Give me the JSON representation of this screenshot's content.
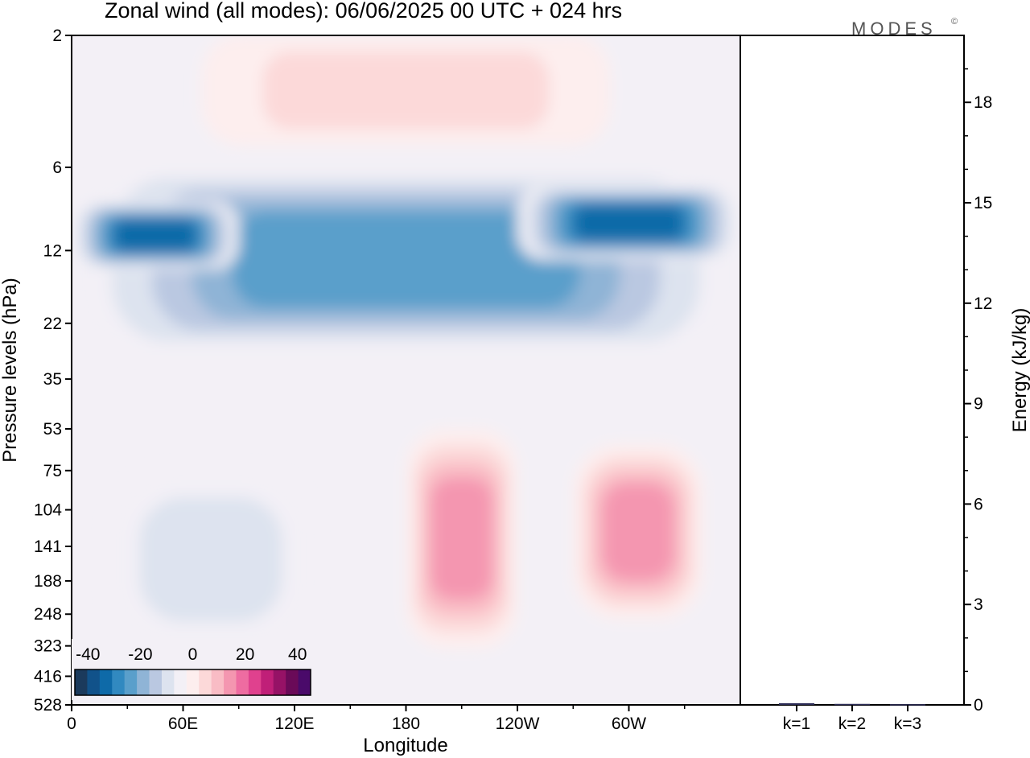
{
  "chart_data": {
    "type": "heatmap",
    "title": "Zonal wind (all modes):  06/06/2025  00 UTC  + 024 hrs",
    "logo": "MODES",
    "logo_mark": "©",
    "xlabel": "Longitude",
    "ylabel": "Pressure levels (hPa)",
    "x_ticks": [
      "0",
      "60E",
      "120E",
      "180",
      "120W",
      "60W"
    ],
    "y_ticks": [
      "2",
      "6",
      "12",
      "22",
      "35",
      "53",
      "75",
      "104",
      "141",
      "188",
      "248",
      "323",
      "416",
      "528"
    ],
    "colorbar": {
      "tick_labels": [
        "-40",
        "-20",
        "0",
        "20",
        "40"
      ],
      "range": [
        -45,
        45
      ],
      "step": 5,
      "colors": [
        "#1b3a5c",
        "#11528a",
        "#0e6aa8",
        "#3189c0",
        "#5a9fcb",
        "#8fb4d6",
        "#bac8e1",
        "#dde3ef",
        "#f3f0f6",
        "#fdeeee",
        "#fcd9d9",
        "#f9bcc5",
        "#f496b0",
        "#ee6ca1",
        "#e0418e",
        "#c01f78",
        "#961266",
        "#6a0a58",
        "#4a0a6a"
      ]
    },
    "energy_panel": {
      "ylabel": "Energy (kJ/kg)",
      "y_ticks": [
        "0",
        "3",
        "6",
        "9",
        "12",
        "15",
        "18"
      ],
      "ylim": [
        0,
        20
      ],
      "categories": [
        "k=1",
        "k=2",
        "k=3"
      ],
      "values": [
        0.05,
        0.03,
        0.02
      ]
    },
    "regions": [
      {
        "desc": "stratospheric easterly jet core",
        "lon": [
          0,
          360
        ],
        "level": [
          6,
          28
        ],
        "value": -25
      },
      {
        "desc": "easterly maximum east",
        "lon": [
          240,
          360
        ],
        "level": [
          7,
          13
        ],
        "value": -37
      },
      {
        "desc": "easterly maximum west",
        "lon": [
          0,
          90
        ],
        "level": [
          8,
          14
        ],
        "value": -34
      },
      {
        "desc": "upper westerlies",
        "lon": [
          70,
          290
        ],
        "level": [
          2,
          5
        ],
        "value": 12
      },
      {
        "desc": "westerly jet near 160W",
        "lon": [
          180,
          240
        ],
        "level": [
          53,
          330
        ],
        "value": 22
      },
      {
        "desc": "westerly jet near 60W",
        "lon": [
          270,
          340
        ],
        "level": [
          60,
          260
        ],
        "value": 18
      },
      {
        "desc": "tropospheric easterlies Africa/Indian Ocean",
        "lon": [
          20,
          130
        ],
        "level": [
          75,
          330
        ],
        "value": -12
      }
    ]
  }
}
